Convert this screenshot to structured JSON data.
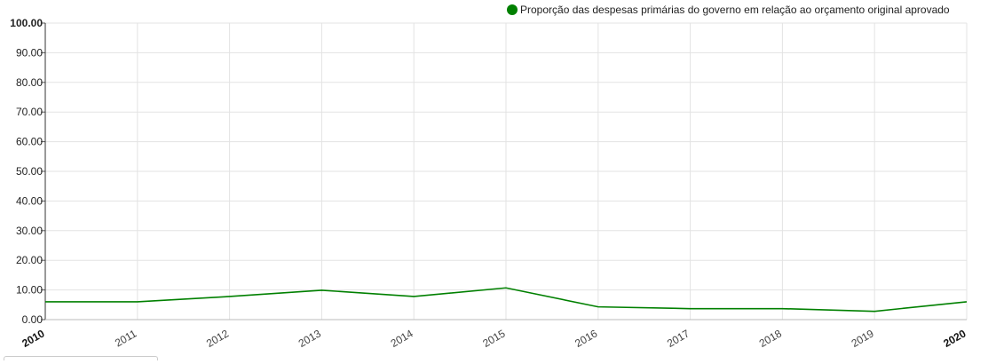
{
  "chart_data": {
    "type": "line",
    "x": [
      "2010",
      "2011",
      "2012",
      "2013",
      "2014",
      "2015",
      "2016",
      "2017",
      "2018",
      "2019",
      "2020"
    ],
    "y_ticks": [
      "0.00",
      "10.00",
      "20.00",
      "30.00",
      "40.00",
      "50.00",
      "60.00",
      "70.00",
      "80.00",
      "90.00",
      "100.00"
    ],
    "ylim": [
      0,
      100
    ],
    "grid": true,
    "legend_position": "top-right",
    "series": [
      {
        "name": "Proporção das despesas primárias do governo em relação ao orçamento original aprovado",
        "color": "#008000",
        "values": [
          6.0,
          6.0,
          7.8,
          9.9,
          7.8,
          10.7,
          4.3,
          3.7,
          3.7,
          2.8,
          6.0
        ]
      }
    ]
  }
}
